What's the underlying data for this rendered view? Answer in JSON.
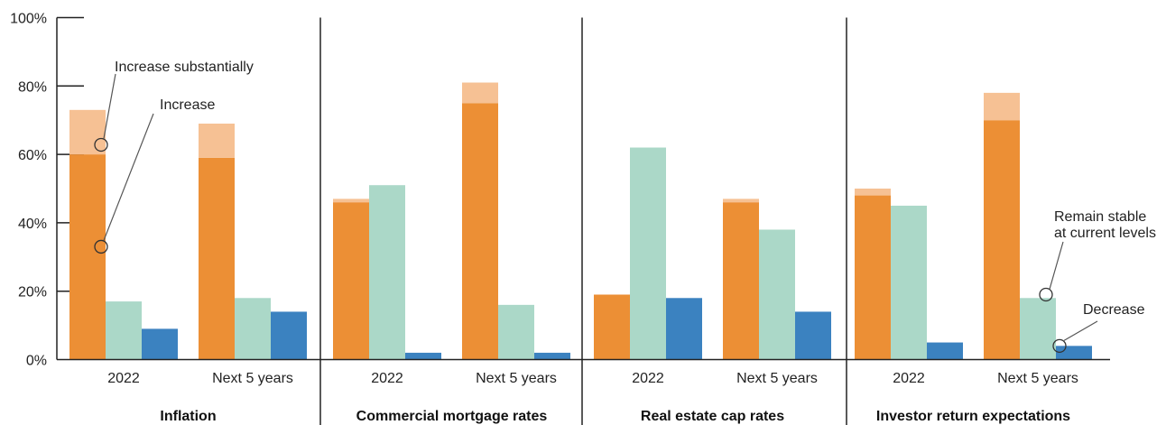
{
  "chart_data": {
    "type": "bar",
    "stacked_top_series": true,
    "y_ticks": [
      "0%",
      "20%",
      "40%",
      "60%",
      "80%",
      "100%"
    ],
    "ylim": [
      0,
      100
    ],
    "colors": {
      "increase_substantially": "#f6c194",
      "increase": "#ec8f35",
      "remain_stable": "#abd8c8",
      "decrease": "#3b82c0",
      "axis": "#222222"
    },
    "annotations": [
      {
        "text": "Increase substantially",
        "target": "increase_substantially"
      },
      {
        "text": "Increase",
        "target": "increase"
      },
      {
        "text": "Remain stable",
        "target": "remain_stable"
      },
      {
        "text": "at current levels",
        "target": "remain_stable"
      },
      {
        "text": "Decrease",
        "target": "decrease"
      }
    ],
    "panels": [
      {
        "label": "Inflation",
        "groups": [
          {
            "category": "2022",
            "increase": 60,
            "increase_substantially": 13,
            "remain_stable": 17,
            "decrease": 9
          },
          {
            "category": "Next 5 years",
            "increase": 59,
            "increase_substantially": 10,
            "remain_stable": 18,
            "decrease": 14
          }
        ]
      },
      {
        "label": "Commercial mortgage rates",
        "groups": [
          {
            "category": "2022",
            "increase": 46,
            "increase_substantially": 1,
            "remain_stable": 51,
            "decrease": 2
          },
          {
            "category": "Next 5 years",
            "increase": 75,
            "increase_substantially": 6,
            "remain_stable": 16,
            "decrease": 2
          }
        ]
      },
      {
        "label": "Real estate cap rates",
        "groups": [
          {
            "category": "2022",
            "increase": 19,
            "increase_substantially": 0,
            "remain_stable": 62,
            "decrease": 18
          },
          {
            "category": "Next 5 years",
            "increase": 46,
            "increase_substantially": 1,
            "remain_stable": 38,
            "decrease": 14
          }
        ]
      },
      {
        "label": "Investor return expectations",
        "groups": [
          {
            "category": "2022",
            "increase": 48,
            "increase_substantially": 2,
            "remain_stable": 45,
            "decrease": 5
          },
          {
            "category": "Next 5 years",
            "increase": 70,
            "increase_substantially": 8,
            "remain_stable": 18,
            "decrease": 4
          }
        ]
      }
    ]
  }
}
